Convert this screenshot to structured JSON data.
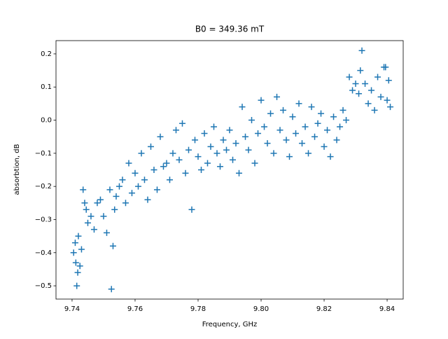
{
  "chart_data": {
    "type": "scatter",
    "title": "B0 = 349.36 mT",
    "x_label": "Frequency, GHz",
    "y_label": "absorbtion, dB",
    "color": "#1f77b4",
    "xlim": [
      9.7349,
      9.8451
    ],
    "ylim": [
      -0.54,
      0.24
    ],
    "xticks": [
      9.74,
      9.76,
      9.78,
      {
        "value": 9.8,
        "label": "9.80"
      },
      9.82,
      9.84
    ],
    "yticks": [
      {
        "value": -0.5,
        "label": "−0.5"
      },
      {
        "value": -0.4,
        "label": "−0.4"
      },
      {
        "value": -0.3,
        "label": "−0.3"
      },
      {
        "value": -0.2,
        "label": "−0.2"
      },
      {
        "value": -0.1,
        "label": "−0.1"
      },
      {
        "value": 0,
        "label": "0.0"
      },
      0.1,
      0.2
    ],
    "x": [
      9.7405,
      9.741,
      9.7412,
      9.7415,
      9.7418,
      9.742,
      9.7425,
      9.743,
      9.7435,
      9.744,
      9.7445,
      9.745,
      9.746,
      9.747,
      9.748,
      9.749,
      9.75,
      9.751,
      9.752,
      9.7525,
      9.753,
      9.7535,
      9.754,
      9.755,
      9.756,
      9.757,
      9.758,
      9.759,
      9.76,
      9.761,
      9.762,
      9.763,
      9.764,
      9.765,
      9.766,
      9.767,
      9.768,
      9.769,
      9.77,
      9.771,
      9.772,
      9.773,
      9.774,
      9.775,
      9.776,
      9.777,
      9.778,
      9.779,
      9.78,
      9.781,
      9.782,
      9.783,
      9.784,
      9.785,
      9.786,
      9.787,
      9.788,
      9.789,
      9.79,
      9.791,
      9.792,
      9.793,
      9.794,
      9.795,
      9.796,
      9.797,
      9.798,
      9.799,
      9.8,
      9.801,
      9.802,
      9.803,
      9.804,
      9.805,
      9.806,
      9.807,
      9.808,
      9.809,
      9.81,
      9.811,
      9.812,
      9.813,
      9.814,
      9.815,
      9.816,
      9.817,
      9.818,
      9.819,
      9.82,
      9.821,
      9.822,
      9.823,
      9.824,
      9.825,
      9.826,
      9.827,
      9.828,
      9.829,
      9.83,
      9.831,
      9.8315,
      9.832,
      9.833,
      9.834,
      9.835,
      9.836,
      9.837,
      9.838,
      9.839,
      9.84,
      9.8405,
      9.841,
      9.8395
    ],
    "values": [
      -0.4,
      -0.37,
      -0.43,
      -0.5,
      -0.46,
      -0.35,
      -0.44,
      -0.39,
      -0.21,
      -0.25,
      -0.27,
      -0.31,
      -0.29,
      -0.33,
      -0.25,
      -0.24,
      -0.29,
      -0.34,
      -0.21,
      -0.51,
      -0.38,
      -0.27,
      -0.23,
      -0.2,
      -0.18,
      -0.25,
      -0.13,
      -0.22,
      -0.16,
      -0.2,
      -0.1,
      -0.18,
      -0.24,
      -0.08,
      -0.15,
      -0.21,
      -0.05,
      -0.14,
      -0.13,
      -0.18,
      -0.1,
      -0.03,
      -0.12,
      -0.01,
      -0.16,
      -0.09,
      -0.27,
      -0.06,
      -0.11,
      -0.15,
      -0.04,
      -0.13,
      -0.08,
      -0.02,
      -0.1,
      -0.14,
      -0.06,
      -0.09,
      -0.03,
      -0.12,
      -0.07,
      -0.16,
      0.04,
      -0.05,
      -0.09,
      0.0,
      -0.13,
      -0.04,
      0.06,
      -0.02,
      -0.07,
      0.02,
      -0.1,
      0.07,
      -0.03,
      0.03,
      -0.06,
      -0.11,
      0.01,
      -0.04,
      0.05,
      -0.07,
      -0.02,
      -0.1,
      0.04,
      -0.05,
      -0.01,
      0.02,
      -0.08,
      -0.03,
      -0.11,
      0.01,
      -0.06,
      -0.02,
      0.03,
      0.0,
      0.13,
      0.09,
      0.11,
      0.08,
      0.15,
      0.21,
      0.11,
      0.05,
      0.09,
      0.03,
      0.13,
      0.07,
      0.16,
      0.06,
      0.12,
      0.04,
      0.16
    ]
  }
}
